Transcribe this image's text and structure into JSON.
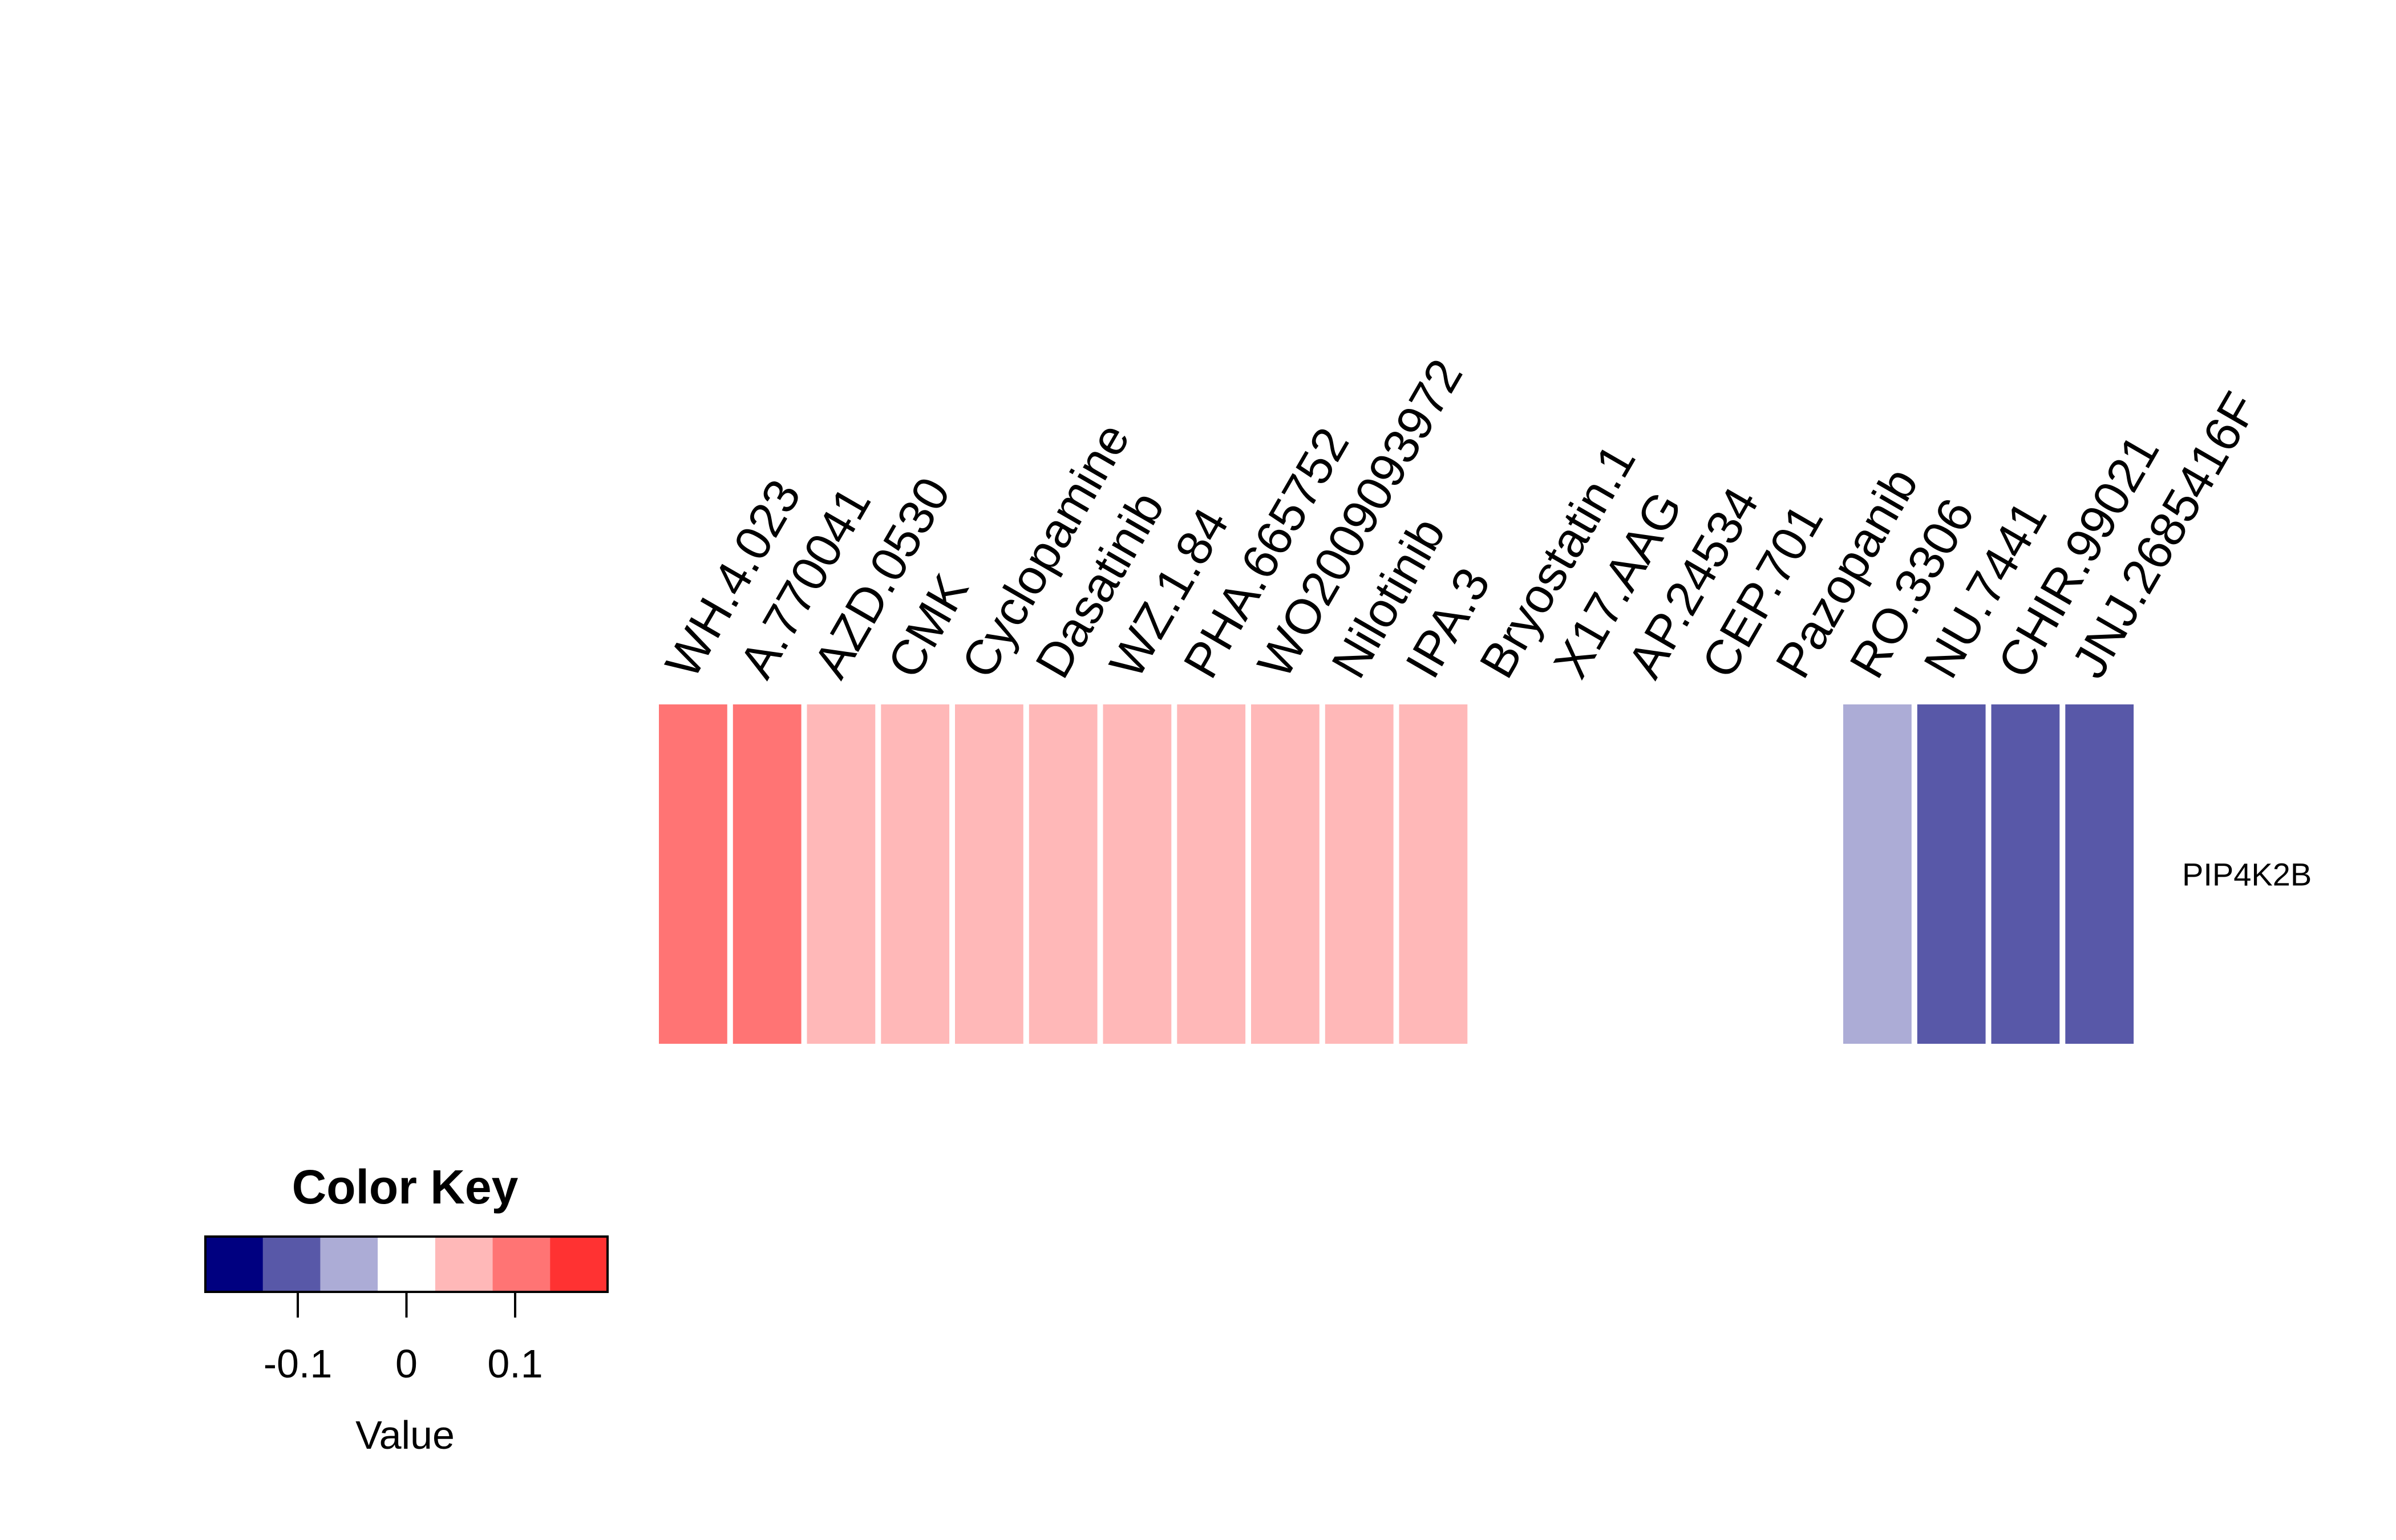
{
  "chart_data": [
    {
      "type": "heatmap",
      "rows": [
        "PIP4K2B"
      ],
      "columns": [
        "WH.4.023",
        "A.770041",
        "AZD.0530",
        "CMK",
        "Cyclopamine",
        "Dasatinib",
        "WZ.1.84",
        "PHA.665752",
        "WO2009093972",
        "Nilotinib",
        "IPA.3",
        "Bryostatin.1",
        "X17.AAG",
        "AP.24534",
        "CEP.701",
        "Pazopanib",
        "RO.3306",
        "NU.7441",
        "CHIR.99021",
        "JNJ.2685416F"
      ],
      "values": [
        [
          0.16,
          0.16,
          0.12,
          0.12,
          0.12,
          0.12,
          0.12,
          0.12,
          0.12,
          0.12,
          0.12,
          0.05,
          0.05,
          0.05,
          0.05,
          0.05,
          -0.05,
          -0.12,
          -0.12,
          -0.12
        ]
      ],
      "color_breaks": [
        -0.185,
        -0.1233,
        -0.0617,
        0,
        0.0617,
        0.1233,
        0.185
      ],
      "colors": [
        "#000080",
        "#5858a8",
        "#acacd6",
        "#ffffff",
        "#ffb8b8",
        "#ff7474",
        "#ff3232"
      ]
    },
    {
      "type": "color-key",
      "title": "Color Key",
      "xlabel": "Value",
      "ticks": [
        -0.1,
        0,
        0.1
      ],
      "tick_labels": [
        "-0.1",
        "0",
        "0.1"
      ],
      "range": [
        -0.185,
        0.185
      ]
    }
  ]
}
